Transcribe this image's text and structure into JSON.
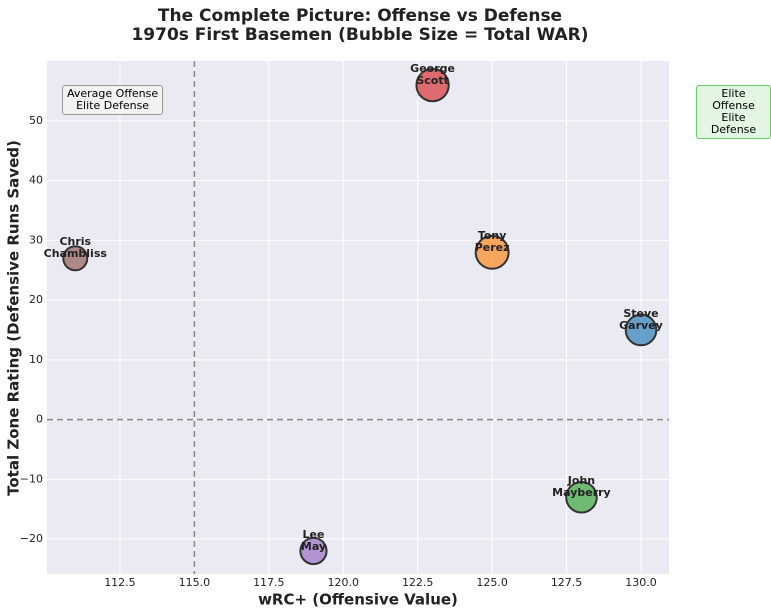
{
  "chart_data": {
    "type": "bubble",
    "title": "The Complete Picture: Offense vs Defense",
    "subtitle": "1970s First Basemen (Bubble Size = Total WAR)",
    "x_label": "wRC+ (Offensive Value)",
    "y_label": "Total Zone Rating (Defensive Runs Saved)",
    "xlim": [
      110.05,
      130.94
    ],
    "ylim": [
      -25.85,
      60.03
    ],
    "xticks": [
      112.5,
      {
        "value": 115,
        "label": "115.0"
      },
      117.5,
      {
        "value": 120,
        "label": "120.0"
      },
      122.5,
      {
        "value": 125,
        "label": "125.0"
      },
      127.5,
      {
        "value": 130,
        "label": "130.0"
      }
    ],
    "yticks": [
      {
        "value": -20,
        "label": "−20"
      },
      {
        "value": -10,
        "label": "−10"
      },
      0,
      10,
      20,
      30,
      40,
      50
    ],
    "grid": true,
    "vline": 115,
    "hline": 0,
    "annotations": [
      "Average Offense\nElite Defense",
      "Elite Offense\nElite Defense"
    ],
    "series": [
      {
        "name": "Steve\nGarvey",
        "color": "#1f77b4",
        "x": [
          130
        ],
        "values": [
          15
        ],
        "sizes": [
          26
        ]
      },
      {
        "name": "Tony\nPerez",
        "color": "#ff7f0e",
        "x": [
          125
        ],
        "values": [
          28
        ],
        "sizes": [
          30
        ]
      },
      {
        "name": "John\nMayberry",
        "color": "#2ca02c",
        "x": [
          128
        ],
        "values": [
          -13
        ],
        "sizes": [
          26
        ]
      },
      {
        "name": "George\nScott",
        "color": "#d62728",
        "x": [
          123
        ],
        "values": [
          56
        ],
        "sizes": [
          29
        ]
      },
      {
        "name": "Lee\nMay",
        "color": "#9467bd",
        "x": [
          119
        ],
        "values": [
          -22
        ],
        "sizes": [
          19
        ]
      },
      {
        "name": "Chris\nChambliss",
        "color": "#8c564b",
        "x": [
          111
        ],
        "values": [
          27
        ],
        "sizes": [
          16
        ]
      }
    ]
  }
}
